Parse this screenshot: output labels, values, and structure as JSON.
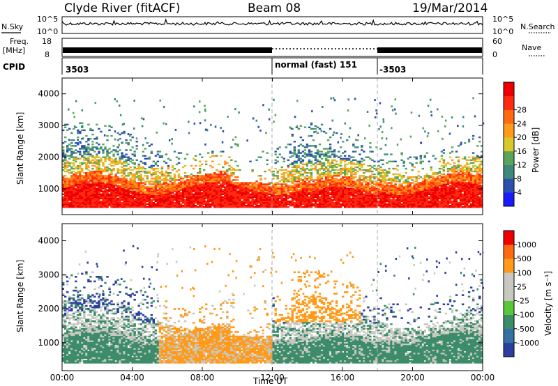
{
  "header": {
    "title": "Clyde River (fitACF)",
    "beam": "Beam 08",
    "date": "19/Mar/2014"
  },
  "top_strip": {
    "nsky_label": "N.Sky",
    "nsearch_label": "N.Search",
    "noise_ticks": [
      "10^5",
      "10^0"
    ],
    "freq_label": "Freq.",
    "freq_unit": "[MHz]",
    "freq_ticks": [
      "18",
      "8"
    ],
    "nave_label": "Nave",
    "nave_ticks": [
      "60",
      "0"
    ],
    "cpid_label": "CPID",
    "cpid_segments": [
      {
        "start_hour": 0,
        "end_hour": 12,
        "label": "3503"
      },
      {
        "start_hour": 12,
        "end_hour": 18,
        "label": "normal (fast) 151"
      },
      {
        "start_hour": 18,
        "end_hour": 24,
        "label": "-3503"
      }
    ]
  },
  "chart_data": [
    {
      "type": "heatmap",
      "quantity": "Power",
      "ylabel": "Slant Range [km]",
      "ylim": [
        180,
        4500
      ],
      "xlim": [
        0,
        24
      ],
      "yticks": [
        1000,
        2000,
        3000,
        4000
      ],
      "colorbar": {
        "label": "Power [dB]",
        "ticks": [
          "4",
          "8",
          "12",
          "16",
          "20",
          "24",
          "28"
        ],
        "colors": [
          "#1a1aff",
          "#2c4fb0",
          "#3d8a7a",
          "#5aa55a",
          "#d8c829",
          "#ff9a1a",
          "#ff6a10",
          "#ff2a10",
          "#ee0000"
        ]
      }
    },
    {
      "type": "heatmap",
      "quantity": "Velocity",
      "ylabel": "Slant Range [km]",
      "ylim": [
        180,
        4500
      ],
      "xlim": [
        0,
        24
      ],
      "yticks": [
        1000,
        2000,
        3000,
        4000
      ],
      "colorbar": {
        "label": "Velocity [m s⁻¹]",
        "ticks": [
          "1000",
          "500",
          "100",
          "25",
          "-25",
          "-100",
          "-500",
          "-1000"
        ],
        "colors": [
          "#2a3fa0",
          "#3470a0",
          "#3c8c6a",
          "#58c83a",
          "#c8c8c0",
          "#c8c8c0",
          "#ff9a1a",
          "#ff6a10",
          "#ee0000"
        ]
      }
    }
  ],
  "x_axis": {
    "ticks": [
      "00:00",
      "04:00",
      "08:00",
      "12:00",
      "16:00",
      "20:00",
      "00:00"
    ],
    "label": "Time UT"
  }
}
